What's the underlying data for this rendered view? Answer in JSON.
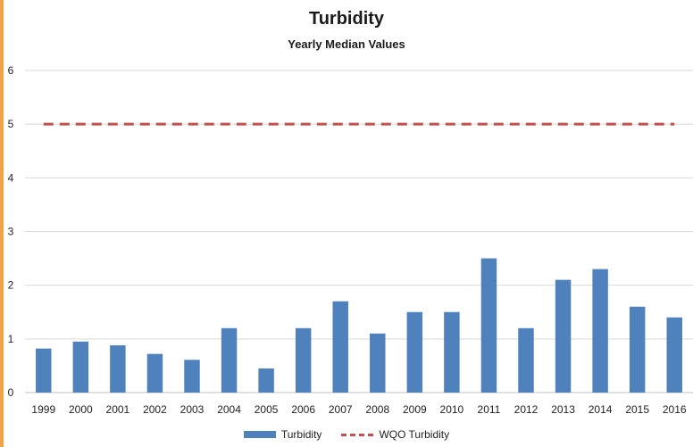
{
  "chart_data": {
    "type": "bar",
    "title": "Turbidity",
    "subtitle": "Yearly Median Values",
    "xlabel": "",
    "ylabel": "",
    "categories": [
      "1999",
      "2000",
      "2001",
      "2002",
      "2003",
      "2004",
      "2005",
      "2006",
      "2007",
      "2008",
      "2009",
      "2010",
      "2011",
      "2012",
      "2013",
      "2014",
      "2015",
      "2016"
    ],
    "series": [
      {
        "name": "Turbidity",
        "type": "bar",
        "color": "#4f81bd",
        "values": [
          0.82,
          0.95,
          0.88,
          0.72,
          0.61,
          1.2,
          0.45,
          1.2,
          1.7,
          1.1,
          1.5,
          1.5,
          2.5,
          1.2,
          2.1,
          2.3,
          1.6,
          1.4
        ]
      },
      {
        "name": "WQO Turbidity",
        "type": "line",
        "style": "dashed",
        "color": "#c0504d",
        "values": [
          5,
          5,
          5,
          5,
          5,
          5,
          5,
          5,
          5,
          5,
          5,
          5,
          5,
          5,
          5,
          5,
          5,
          5
        ]
      }
    ],
    "ylim": [
      0,
      6
    ],
    "yticks": [
      "0",
      "1",
      "2",
      "3",
      "4",
      "5",
      "6"
    ],
    "grid": true,
    "legend_position": "bottom"
  }
}
